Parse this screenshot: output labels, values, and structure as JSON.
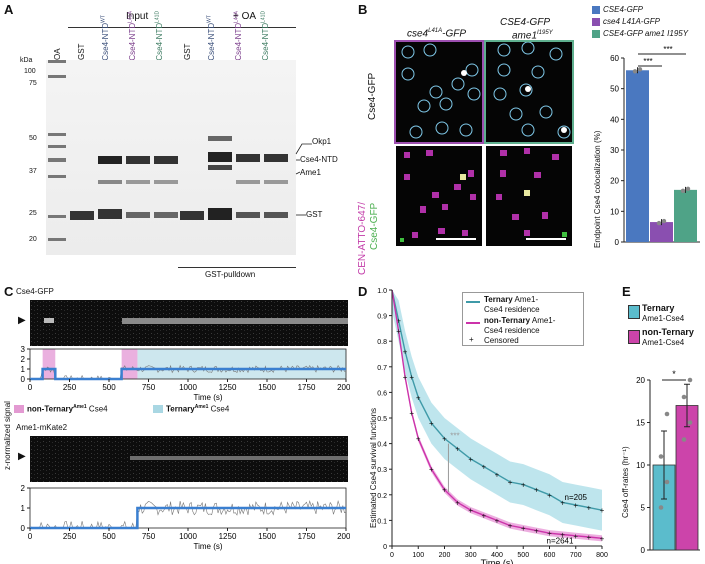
{
  "panels": {
    "A": {
      "label": "A",
      "header_input": "Input",
      "header_oa": "+ OA",
      "footer": "GST-pulldown",
      "kda_unit": "kDa",
      "kda_markers": [
        "100",
        "75",
        "50",
        "37",
        "25",
        "20"
      ],
      "lane_labels": [
        "OA",
        "GST",
        "Cse4-NTD",
        "Cse4-NTD",
        "Cse4-NTD",
        "GST",
        "Cse4-NTD",
        "Cse4-NTD",
        "Cse4-NTD"
      ],
      "lane_sups": [
        "",
        "",
        "WT",
        "L41A",
        "L41D",
        "",
        "WT",
        "L41A",
        "L41D"
      ],
      "band_labels": [
        "Okp1",
        "Cse4-NTD",
        "Ame1",
        "GST"
      ]
    },
    "B": {
      "label": "B",
      "col1_title": "cse4",
      "col1_sup": "L41A",
      "col1_suffix": "-GFP",
      "col2_title": "CSE4-GFP",
      "col2_line2": "ame1",
      "col2_sup": "I195Y",
      "row1_label": "Cse4-GFP",
      "row2_label_a": "CEN-ATTO-647/",
      "row2_label_b": "Cse4-GFP",
      "col1_color": "#9d4fb0",
      "col2_color": "#5fb08f",
      "chart_data": {
        "type": "bar",
        "categories": [
          "CSE4-GFP",
          "cse4 L41A-GFP",
          "CSE4-GFP ame1 I195Y"
        ],
        "values": [
          56,
          6.5,
          17
        ],
        "ylabel": "Endpoint Cse4 colocalization (%)",
        "ylim": [
          0,
          60
        ],
        "yticks": [
          "0",
          "10",
          "20",
          "30",
          "40",
          "50",
          "60"
        ],
        "legend": [
          {
            "name": "CSE4-GFP",
            "color": "#4a78c0"
          },
          {
            "name": "cse4 L41A-GFP",
            "color": "#8a4fb0"
          },
          {
            "name": "CSE4-GFP ame1 I195Y",
            "color": "#4fa387"
          }
        ],
        "significance": [
          "***",
          "***"
        ]
      }
    },
    "C": {
      "label": "C",
      "top_title": "Cse4-GFP",
      "bottom_title": "Ame1-mKate2",
      "ylabel": "z-normalized signal",
      "xlabel": "Time (s)",
      "xticks": [
        "0",
        "250",
        "500",
        "750",
        "1000",
        "1250",
        "1500",
        "1750",
        "2000"
      ],
      "yticks": [
        "0",
        "1",
        "2",
        "3"
      ],
      "legend_nonternary": "non-Ternary",
      "legend_nonternary_sup": "Ame1",
      "legend_nonternary_suffix": " Cse4",
      "legend_ternary": "Ternary",
      "legend_ternary_sup": "Ame1",
      "legend_ternary_suffix": " Cse4",
      "chart_data": [
        {
          "type": "line",
          "title": "Cse4-GFP",
          "xlim": [
            0,
            2000
          ],
          "ylim": [
            0,
            3
          ],
          "step_x": [
            0,
            80,
            80,
            160,
            160,
            580,
            580,
            680,
            680,
            2000
          ],
          "step_y": [
            0,
            0,
            1,
            1,
            0,
            0,
            1,
            1,
            1,
            1
          ],
          "nonternary_spans": [
            [
              80,
              160
            ],
            [
              580,
              680
            ]
          ],
          "ternary_spans": [
            [
              680,
              2000
            ]
          ]
        },
        {
          "type": "line",
          "title": "Ame1-mKate2",
          "xlim": [
            0,
            2000
          ],
          "ylim": [
            0,
            2
          ],
          "step_x": [
            0,
            680,
            680,
            2000
          ],
          "step_y": [
            0,
            0,
            1,
            1
          ]
        }
      ]
    },
    "D": {
      "label": "D",
      "chart_data": {
        "type": "line",
        "ylabel": "Estimated Cse4 survival functions",
        "xlabel": "Time (s)",
        "xlim": [
          0,
          800
        ],
        "ylim": [
          0,
          1
        ],
        "xticks": [
          "0",
          "100",
          "200",
          "300",
          "400",
          "500",
          "600",
          "700",
          "800"
        ],
        "yticks": [
          "0",
          "0.1",
          "0.2",
          "0.3",
          "0.4",
          "0.5",
          "0.6",
          "0.7",
          "0.8",
          "0.9",
          "1.0"
        ],
        "series": [
          {
            "name": "Ternary",
            "x": [
              0,
              25,
              50,
              75,
              100,
              150,
              200,
              250,
              300,
              350,
              400,
              450,
              500,
              550,
              600,
              650,
              700,
              750,
              800
            ],
            "y": [
              1.0,
              0.88,
              0.76,
              0.66,
              0.58,
              0.48,
              0.42,
              0.38,
              0.34,
              0.31,
              0.28,
              0.25,
              0.24,
              0.22,
              0.2,
              0.17,
              0.16,
              0.15,
              0.14
            ],
            "color": "#3f9aa8",
            "band": "#aedfe8",
            "n": "n=205"
          },
          {
            "name": "non-Ternary",
            "x": [
              0,
              25,
              50,
              75,
              100,
              150,
              200,
              250,
              300,
              350,
              400,
              450,
              500,
              550,
              600,
              650,
              700,
              750,
              800
            ],
            "y": [
              1.0,
              0.84,
              0.66,
              0.52,
              0.42,
              0.3,
              0.22,
              0.17,
              0.14,
              0.12,
              0.1,
              0.08,
              0.07,
              0.06,
              0.05,
              0.045,
              0.04,
              0.035,
              0.03
            ],
            "color": "#cc33aa",
            "band": "#e89ad8",
            "n": "n=2641"
          }
        ],
        "significance": "***",
        "legend": {
          "ternary_bold": "Ternary",
          "ternary_rest": " Ame1-",
          "ternary_line2": "Cse4 residence",
          "nonternary_bold": "non-Ternary",
          "nonternary_rest": " Ame1-",
          "nonternary_line2": "Cse4 residence",
          "censored_symbol": "+",
          "censored": "Censored"
        }
      }
    },
    "E": {
      "label": "E",
      "chart_data": {
        "type": "bar",
        "categories": [
          "Ternary Ame1-Cse4",
          "non-Ternary Ame1-Cse4"
        ],
        "values": [
          10,
          17
        ],
        "errors": [
          4,
          2.5
        ],
        "points": [
          [
            5,
            8,
            11,
            16
          ],
          [
            13,
            15,
            18,
            20
          ]
        ],
        "ylabel": "Cse4 off-rates (hr⁻¹)",
        "ylim": [
          0,
          20
        ],
        "yticks": [
          "0",
          "5",
          "10",
          "15",
          "20"
        ],
        "colors": [
          "#5bbccc",
          "#cc44aa"
        ],
        "significance": "*"
      },
      "legend": {
        "ternary_bold": "Ternary",
        "ternary_line2": "Ame1-Cse4",
        "nonternary_bold": "non-Ternary",
        "nonternary_line2": "Ame1-Cse4"
      }
    }
  }
}
